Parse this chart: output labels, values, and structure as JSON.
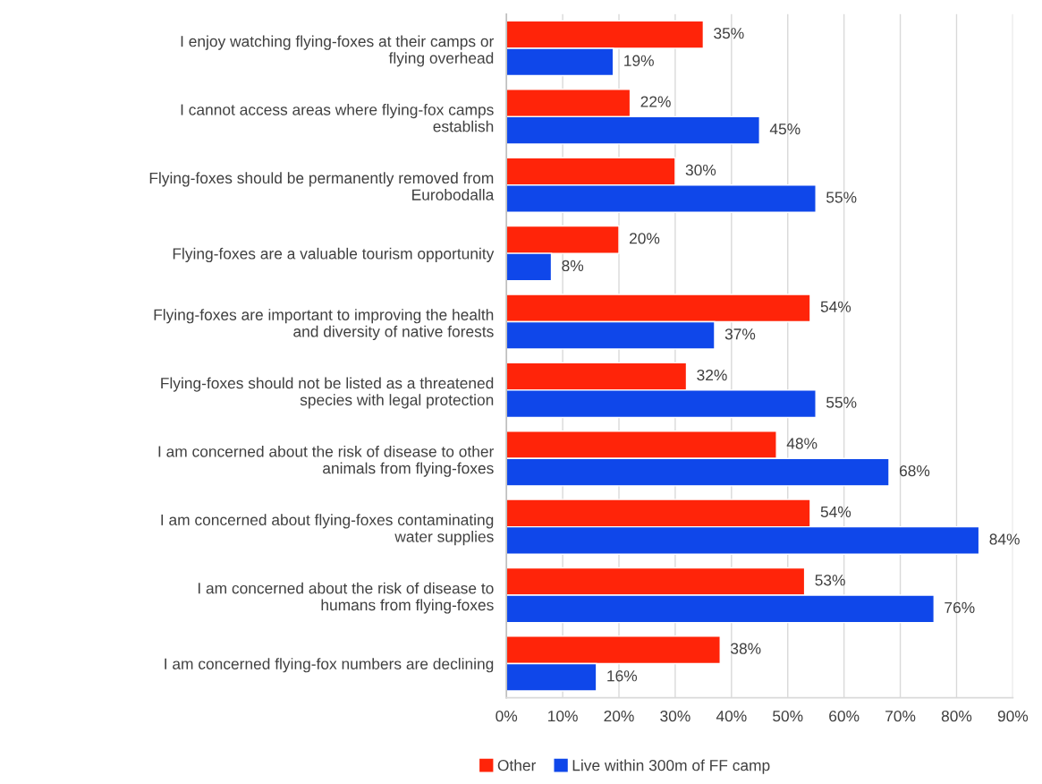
{
  "chart_data": {
    "type": "bar",
    "orientation": "horizontal",
    "categories": [
      "I enjoy watching flying-foxes at their camps or\nflying overhead",
      "I cannot access areas where flying-fox camps\nestablish",
      "Flying-foxes should be permanently removed from\nEurobodalla",
      "Flying-foxes are a valuable tourism opportunity",
      "Flying-foxes are important to improving the health\nand diversity of native forests",
      "Flying-foxes should not be listed as a threatened\nspecies with legal protection",
      "I am concerned about the risk of disease to other\nanimals from flying-foxes",
      "I am concerned about flying-foxes contaminating\nwater supplies",
      "I am concerned about the risk of disease to\nhumans from flying-foxes",
      "I am concerned flying-fox numbers are declining"
    ],
    "series": [
      {
        "name": "Other",
        "color": "#ff2409",
        "values": [
          35,
          22,
          30,
          20,
          54,
          32,
          48,
          54,
          53,
          38
        ],
        "value_labels": [
          "35%",
          "22%",
          "30%",
          "20%",
          "54%",
          "32%",
          "48%",
          "54%",
          "53%",
          "38%"
        ]
      },
      {
        "name": "Live within 300m of FF camp",
        "color": "#0f47ea",
        "values": [
          19,
          45,
          55,
          8,
          37,
          55,
          68,
          84,
          76,
          16
        ],
        "value_labels": [
          "19%",
          "45%",
          "55%",
          "8%",
          "37%",
          "55%",
          "68%",
          "84%",
          "76%",
          "16%"
        ]
      }
    ],
    "xlim": [
      0,
      90
    ],
    "xticks": [
      {
        "value": 0,
        "label": "0%"
      },
      {
        "value": 10,
        "label": "10%"
      },
      {
        "value": 20,
        "label": "20%"
      },
      {
        "value": 30,
        "label": "30%"
      },
      {
        "value": 40,
        "label": "40%"
      },
      {
        "value": 50,
        "label": "50%"
      },
      {
        "value": 60,
        "label": "60%"
      },
      {
        "value": 70,
        "label": "70%"
      },
      {
        "value": 80,
        "label": "80%"
      },
      {
        "value": 90,
        "label": "90%"
      }
    ],
    "grid": "x",
    "legend": "bottom"
  }
}
